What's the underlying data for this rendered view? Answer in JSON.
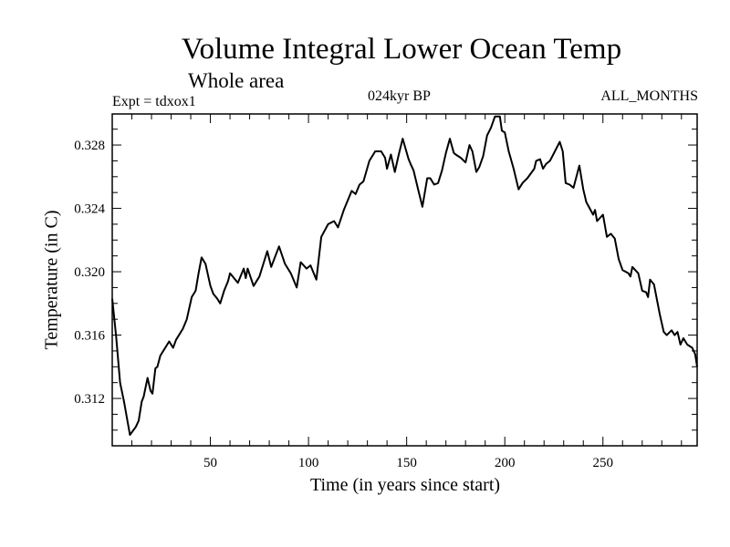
{
  "chart_data": {
    "type": "line",
    "title": "Volume Integral Lower Ocean Temp",
    "subtitle": "Whole area",
    "annotations": {
      "left": "Expt = tdxox1",
      "center": "024kyr BP",
      "right": "ALL_MONTHS"
    },
    "xlabel": "Time (in years since start)",
    "ylabel": "Temperature (in C)",
    "xlim": [
      0,
      298
    ],
    "ylim": [
      0.30901,
      0.32996
    ],
    "xticks": [
      50,
      100,
      150,
      200,
      250
    ],
    "xtick_labels": [
      "50",
      "100",
      "150",
      "200",
      "250"
    ],
    "x_minor_step": 10,
    "yticks": [
      0.312,
      0.316,
      0.32,
      0.324,
      0.328
    ],
    "ytick_labels": [
      "0.312",
      "0.316",
      "0.320",
      "0.324",
      "0.328"
    ],
    "y_minor_step": 0.001,
    "grid": false,
    "series": [
      {
        "name": "Volume Integral Lower Ocean Temp",
        "color": "#000000",
        "x": [
          0,
          2,
          4,
          6,
          9,
          12,
          13.5,
          15,
          16,
          18,
          19.5,
          20.5,
          22,
          23,
          24.5,
          26.5,
          29,
          31,
          32.5,
          36,
          38,
          40.5,
          42.5,
          44,
          45.5,
          47.5,
          50,
          51.5,
          53.5,
          55,
          57,
          59,
          60,
          64,
          67,
          68,
          69,
          72,
          75,
          79,
          81,
          85,
          88,
          91,
          94,
          96,
          99,
          101,
          104,
          106.5,
          110,
          113,
          115,
          118,
          122,
          124,
          126,
          128,
          131,
          134,
          137,
          139,
          140,
          142,
          144,
          146,
          148,
          151,
          152,
          153.5,
          156,
          158,
          160.5,
          162,
          164,
          166,
          168,
          170,
          172,
          174,
          175,
          177.5,
          180,
          182,
          183.5,
          185.5,
          187,
          189,
          191,
          193,
          195,
          197.5,
          198.5,
          200,
          202,
          204.5,
          207,
          209,
          211.5,
          215,
          216,
          218,
          219.5,
          221,
          223,
          225.5,
          228,
          229.5,
          231,
          233,
          235,
          238,
          240,
          241.5,
          245,
          246,
          247,
          250,
          252,
          254,
          256,
          258,
          260,
          263,
          264,
          265,
          268,
          270,
          272,
          273,
          274,
          276,
          279,
          281,
          282.5,
          285,
          286.5,
          288,
          289.5,
          291,
          293,
          295.5,
          297,
          298
        ],
        "y": [
          0.3183,
          0.3159,
          0.313,
          0.3118,
          0.3097,
          0.3102,
          0.3106,
          0.3118,
          0.3121,
          0.3133,
          0.3125,
          0.3123,
          0.3139,
          0.314,
          0.3147,
          0.3151,
          0.3156,
          0.3152,
          0.3157,
          0.3164,
          0.317,
          0.3184,
          0.3188,
          0.3199,
          0.3209,
          0.3205,
          0.3191,
          0.3186,
          0.3183,
          0.318,
          0.3188,
          0.3194,
          0.3199,
          0.3193,
          0.3202,
          0.3196,
          0.3202,
          0.3191,
          0.3197,
          0.3213,
          0.3203,
          0.3216,
          0.3205,
          0.3199,
          0.319,
          0.3206,
          0.3202,
          0.3204,
          0.3195,
          0.3222,
          0.323,
          0.3232,
          0.3228,
          0.3239,
          0.3251,
          0.3249,
          0.3255,
          0.3257,
          0.327,
          0.3276,
          0.3276,
          0.3272,
          0.3265,
          0.3274,
          0.3263,
          0.3274,
          0.3284,
          0.3271,
          0.3268,
          0.3264,
          0.3251,
          0.3241,
          0.3259,
          0.3259,
          0.3255,
          0.3256,
          0.3264,
          0.3275,
          0.3284,
          0.3275,
          0.3274,
          0.3272,
          0.3269,
          0.328,
          0.3276,
          0.3263,
          0.3266,
          0.3273,
          0.3286,
          0.3291,
          0.3298,
          0.3298,
          0.3289,
          0.3288,
          0.3276,
          0.3265,
          0.3252,
          0.3256,
          0.3259,
          0.3265,
          0.327,
          0.3271,
          0.3265,
          0.3268,
          0.327,
          0.3276,
          0.3282,
          0.3276,
          0.3256,
          0.3255,
          0.3253,
          0.3267,
          0.3252,
          0.3244,
          0.3236,
          0.3239,
          0.3232,
          0.3236,
          0.3222,
          0.3224,
          0.3221,
          0.3208,
          0.3201,
          0.3199,
          0.3197,
          0.3203,
          0.3199,
          0.3188,
          0.3187,
          0.3184,
          0.3195,
          0.3192,
          0.3173,
          0.3162,
          0.316,
          0.3163,
          0.316,
          0.3162,
          0.3154,
          0.3158,
          0.3154,
          0.3152,
          0.3148,
          0.314
        ]
      }
    ]
  }
}
